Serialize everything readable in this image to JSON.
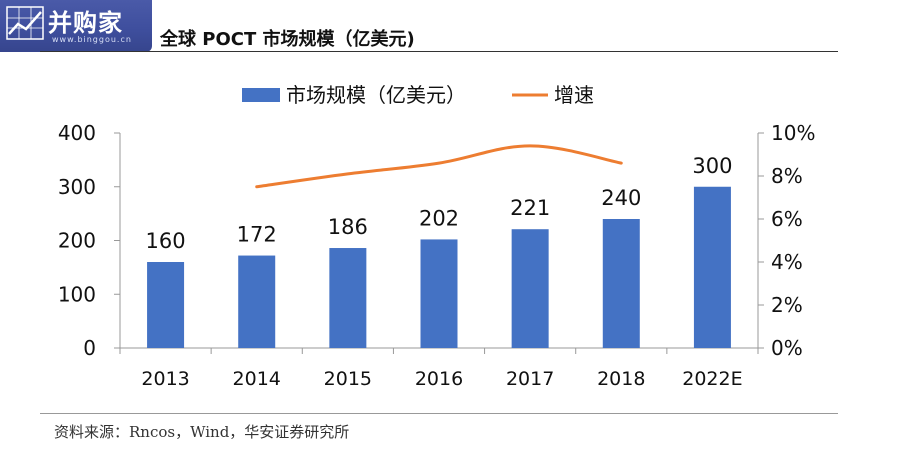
{
  "header": {
    "logo_text": "并购家",
    "logo_url": "www.binggou.cn",
    "title": "全球 POCT 市场规模（亿美元)"
  },
  "source_note": "资料来源：Rncos，Wind，华安证券研究所",
  "colors": {
    "bar": "#4472c4",
    "line": "#ed7d31",
    "logo_bg": "#3f4f9e"
  },
  "chart_data": {
    "type": "bar",
    "categories": [
      "2013",
      "2014",
      "2015",
      "2016",
      "2017",
      "2018",
      "2022E"
    ],
    "series": [
      {
        "name": "市场规模（亿美元）",
        "type": "bar",
        "axis": "left",
        "values": [
          160,
          172,
          186,
          202,
          221,
          240,
          300
        ]
      },
      {
        "name": "增速",
        "type": "line",
        "axis": "right",
        "values": [
          null,
          0.075,
          0.081,
          0.086,
          0.094,
          0.086,
          null
        ]
      }
    ],
    "data_labels": [
      "160",
      "172",
      "186",
      "202",
      "221",
      "240",
      "300"
    ],
    "y_left": {
      "ylim": [
        0,
        400
      ],
      "ticks": [
        0,
        100,
        200,
        300,
        400
      ]
    },
    "y_right": {
      "ylim": [
        0,
        0.1
      ],
      "ticks": [
        "0%",
        "2%",
        "4%",
        "6%",
        "8%",
        "10%"
      ]
    },
    "grid": false,
    "legend_position": "top-center"
  }
}
